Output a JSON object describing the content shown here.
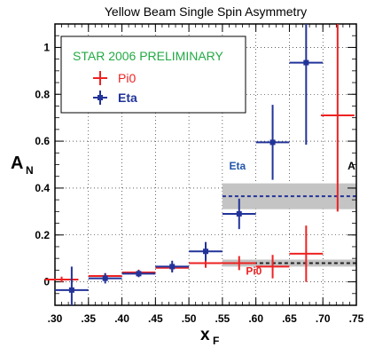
{
  "chart_data": {
    "type": "scatter",
    "title": "Yellow Beam Single Spin Asymmetry",
    "xlabel": "x",
    "xlabel_sub": "F",
    "ylabel": "A",
    "ylabel_sub": "N",
    "xlim": [
      0.3,
      0.75
    ],
    "ylim": [
      -0.1,
      1.1
    ],
    "grid": true,
    "x_ticks": [
      ".30",
      ".35",
      ".40",
      ".45",
      ".50",
      ".55",
      ".60",
      ".65",
      ".70",
      ".75"
    ],
    "y_ticks": [
      "0",
      "0.2",
      "0.4",
      "0.6",
      "0.8",
      "1"
    ],
    "legend": {
      "header": "STAR 2006 PRELIMINARY",
      "header_color": "#22aa44",
      "placement": "top-left"
    },
    "series": [
      {
        "name": "Pi0",
        "color": "#ee2222",
        "points": [
          {
            "x": 0.31,
            "y": 0.01,
            "xerr": 0.025,
            "yerr": 0.012
          },
          {
            "x": 0.375,
            "y": 0.025,
            "xerr": 0.025,
            "yerr": 0.012
          },
          {
            "x": 0.425,
            "y": 0.04,
            "xerr": 0.025,
            "yerr": 0.012
          },
          {
            "x": 0.475,
            "y": 0.06,
            "xerr": 0.025,
            "yerr": 0.015
          },
          {
            "x": 0.525,
            "y": 0.08,
            "xerr": 0.025,
            "yerr": 0.02
          },
          {
            "x": 0.575,
            "y": 0.08,
            "xerr": 0.025,
            "yerr": 0.03
          },
          {
            "x": 0.625,
            "y": 0.065,
            "xerr": 0.025,
            "yerr": 0.05
          },
          {
            "x": 0.675,
            "y": 0.12,
            "xerr": 0.025,
            "yerr": 0.12
          },
          {
            "x": 0.722,
            "y": 0.71,
            "xerr": 0.025,
            "yerr": 0.41
          }
        ]
      },
      {
        "name": "Eta",
        "color": "#223399",
        "points": [
          {
            "x": 0.325,
            "y": -0.035,
            "xerr": 0.025,
            "yerr": 0.1
          },
          {
            "x": 0.375,
            "y": 0.015,
            "xerr": 0.025,
            "yerr": 0.022
          },
          {
            "x": 0.425,
            "y": 0.035,
            "xerr": 0.025,
            "yerr": 0.015
          },
          {
            "x": 0.475,
            "y": 0.065,
            "xerr": 0.025,
            "yerr": 0.025
          },
          {
            "x": 0.525,
            "y": 0.13,
            "xerr": 0.025,
            "yerr": 0.04
          },
          {
            "x": 0.575,
            "y": 0.29,
            "xerr": 0.025,
            "yerr": 0.065
          },
          {
            "x": 0.625,
            "y": 0.595,
            "xerr": 0.025,
            "yerr": 0.16
          },
          {
            "x": 0.675,
            "y": 0.935,
            "xerr": 0.025,
            "yerr": 0.35
          }
        ]
      }
    ],
    "reference_lines": [
      {
        "label": "Eta",
        "y": 0.365,
        "band": [
          0.31,
          0.42
        ],
        "x_from": 0.55,
        "color": "#223399",
        "band_color": "#c4c4c4"
      },
      {
        "label": "Pi0",
        "y": 0.08,
        "band": [
          0.065,
          0.095
        ],
        "x_from": 0.55,
        "color": "#222222",
        "band_color": "#c4c4c4"
      }
    ],
    "annotations": [
      {
        "text": "Eta",
        "x": 0.56,
        "y": 0.48,
        "color": "#2255aa"
      },
      {
        "text": "Pi0",
        "x": 0.585,
        "y": 0.03,
        "color": "#ee2222"
      },
      {
        "text": "A",
        "x": 0.737,
        "y": 0.48,
        "color": "#000000"
      }
    ]
  }
}
